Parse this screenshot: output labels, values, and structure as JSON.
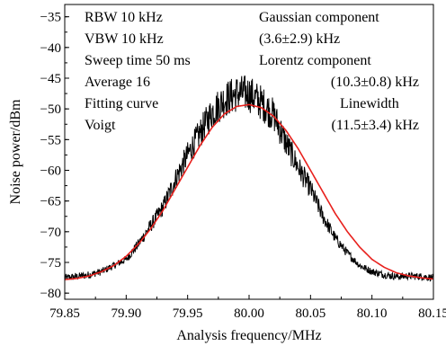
{
  "chart_data": {
    "type": "line",
    "xlabel": "Analysis frequency/MHz",
    "ylabel": "Noise power/dBm",
    "xlim": [
      79.85,
      80.15
    ],
    "ylim": [
      -81,
      -33
    ],
    "xticks": [
      "79.85",
      "79.90",
      "79.95",
      "80.00",
      "80.05",
      "80.10",
      "80.15"
    ],
    "yticks": [
      "−35",
      "−40",
      "−45",
      "−50",
      "−55",
      "−60",
      "−65",
      "−70",
      "−75",
      "−80"
    ],
    "ytick_values": [
      -35,
      -40,
      -45,
      -50,
      -55,
      -60,
      -65,
      -70,
      -75,
      -80
    ],
    "xtick_values": [
      79.85,
      79.9,
      79.95,
      80.0,
      80.05,
      80.1,
      80.15
    ],
    "grid": false,
    "series": [
      {
        "color": "#000000",
        "x": [
          79.85,
          79.86,
          79.87,
          79.88,
          79.89,
          79.9,
          79.91,
          79.92,
          79.93,
          79.94,
          79.95,
          79.96,
          79.97,
          79.98,
          79.99,
          80.0,
          80.01,
          80.02,
          80.03,
          80.04,
          80.05,
          80.06,
          80.07,
          80.08,
          80.09,
          80.1,
          80.11,
          80.12,
          80.13,
          80.14,
          80.15
        ],
        "y": [
          -77.5,
          -77.3,
          -77.0,
          -76.5,
          -75.5,
          -74.5,
          -72.0,
          -69.0,
          -66.0,
          -61.5,
          -57.5,
          -54.0,
          -50.5,
          -48.5,
          -47.5,
          -47.5,
          -49.0,
          -51.0,
          -55.5,
          -59.5,
          -63.0,
          -67.5,
          -71.0,
          -73.5,
          -75.5,
          -76.5,
          -77.0,
          -77.3,
          -77.2,
          -77.3,
          -77.5
        ]
      },
      {
        "color": "#e8211d",
        "x": [
          79.85,
          79.86,
          79.87,
          79.88,
          79.89,
          79.9,
          79.91,
          79.92,
          79.93,
          79.94,
          79.95,
          79.96,
          79.97,
          79.98,
          79.99,
          80.0,
          80.01,
          80.02,
          80.03,
          80.04,
          80.05,
          80.06,
          80.07,
          80.08,
          80.09,
          80.1,
          80.11,
          80.12,
          80.13,
          80.14,
          80.15
        ],
        "y": [
          -77.8,
          -77.6,
          -77.2,
          -76.5,
          -75.5,
          -74.0,
          -72.0,
          -69.5,
          -66.5,
          -63.0,
          -59.5,
          -56.0,
          -53.0,
          -50.8,
          -49.6,
          -49.3,
          -49.8,
          -51.2,
          -53.5,
          -56.5,
          -60.0,
          -63.5,
          -67.0,
          -70.0,
          -72.5,
          -74.5,
          -75.8,
          -76.7,
          -77.2,
          -77.5,
          -77.7
        ]
      }
    ],
    "annotations_left": [
      "RBW 10 kHz",
      "VBW 10 kHz",
      "Sweep time 50 ms",
      "Average 16",
      "Fitting curve",
      "Voigt"
    ],
    "annotations_right": [
      "Gaussian component",
      "(3.6±2.9) kHz",
      "Lorentz component",
      "(10.3±0.8) kHz",
      "Linewidth",
      "(11.5±3.4) kHz"
    ]
  }
}
